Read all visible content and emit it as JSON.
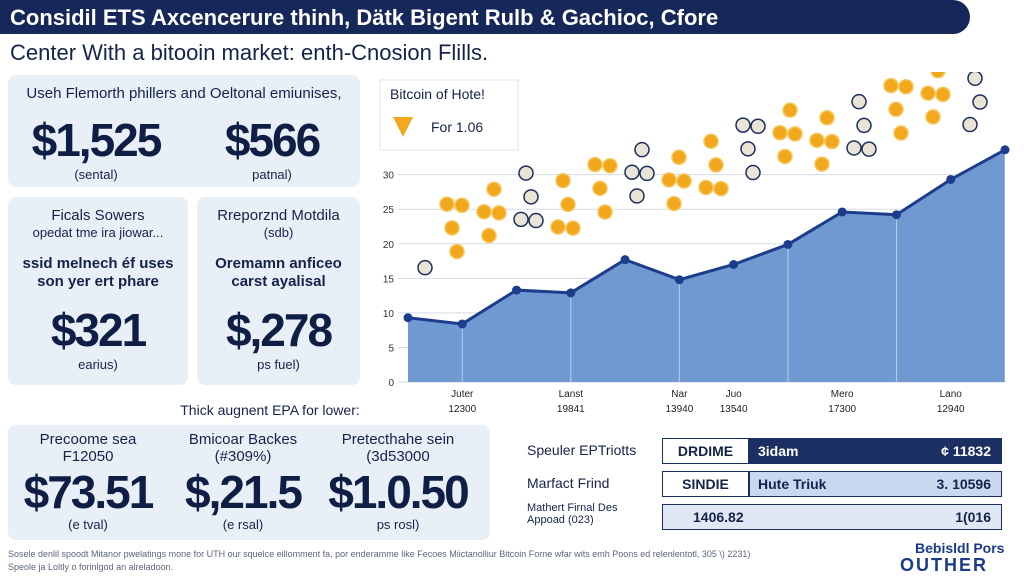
{
  "header": {
    "title": "Considil ETS Axcencerure thinh, Dätk Bigent Rulb & Gachioc, Cfore",
    "subtitle": "Center With a bitooin market: enth-Cnosion Flills."
  },
  "summary": {
    "caption": "Useh Flemorth phillers and Oeltonal emiunises,",
    "items": [
      {
        "value": "$1,525",
        "note": "(sental)"
      },
      {
        "value": "$566",
        "note": "patnal)"
      }
    ]
  },
  "cards": [
    {
      "title": "Ficals Sowers",
      "subtitle": "opedat tme ira jiowar...",
      "description": [
        "ssid melnech éf uses",
        "son yer ert phare"
      ],
      "value": "$321",
      "note": "earius)"
    },
    {
      "title": "Rreporznd Motdila",
      "subtitle": "(sdb)",
      "description": [
        "Oremamn anficeo",
        "carst ayalisal"
      ],
      "value": "$,278",
      "note": "ps fuel)"
    }
  ],
  "chart_data": {
    "type": "area",
    "legend_title": "Bitcoin of Hote!",
    "legend_label": "For 1.06",
    "categories": [
      null,
      "Juter",
      null,
      "Lanst",
      null,
      "Nar",
      "Juo",
      null,
      "Mero",
      null,
      "Lano",
      null
    ],
    "category_codes": [
      null,
      "12300",
      null,
      "19841",
      null,
      "13940",
      "13540",
      null,
      "17300",
      null,
      "12940",
      null
    ],
    "values": [
      9.3,
      8.4,
      13.3,
      12.9,
      17.7,
      14.8,
      17,
      19.9,
      24.6,
      24.2,
      29.3,
      33.6
    ],
    "ylim": [
      0,
      34
    ],
    "yticks": [
      0,
      5,
      10,
      15,
      20,
      25,
      30
    ],
    "grid": true,
    "color": "#7199d1",
    "line_color": "#1c3d8c"
  },
  "section_label": "Thick augnent EPA for lower:",
  "bottom_items": [
    {
      "title": [
        "Precoome sea",
        "F12050"
      ],
      "value": "$73.51",
      "note": "(e tval)"
    },
    {
      "title": [
        "Bmicoar Backes",
        "(#309%)"
      ],
      "value": "$,21.5",
      "note": "(e rsal)"
    },
    {
      "title": [
        "Pretecthahe sein",
        "(3d53000"
      ],
      "value": "$1.0.50",
      "note": "ps rosl)"
    }
  ],
  "table": [
    {
      "label": "Speuler EPTriotts",
      "tag": "DRDIME",
      "name": "3idam",
      "value": "¢ 11832"
    },
    {
      "label": "Marfact Frind",
      "tag": "SINDIE",
      "name": "Hute Triuk",
      "value": "3. 10596"
    },
    {
      "label": "Mathert Firnal Des Appoad (023)",
      "name": "1406.82",
      "value": "1(016"
    }
  ],
  "footer": [
    "Sosele denlil spoodt Mitanor pwelatings mone for UTH our squelce eillomment fa, por enderamme like Fecoes Miictanolliur Bitcoin Forne wfar wits emh Poons ed relenlentotl, 305 \\) 2231)",
    "Speole ja Loltly o forinlgod an alreladoon."
  ],
  "logo": [
    "Bebisldl Pors",
    "OUTHER"
  ]
}
